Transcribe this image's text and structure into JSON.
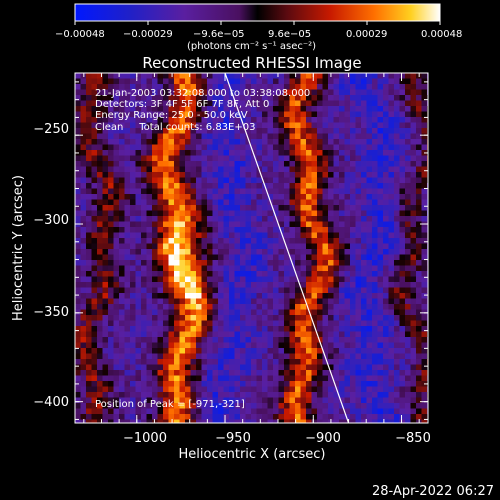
{
  "chart_data": {
    "type": "heatmap",
    "title": "Reconstructed RHESSI Image",
    "xlabel": "Heliocentric X (arcsec)",
    "ylabel": "Heliocentric Y (arcsec)",
    "xlim": [
      -1035,
      -835
    ],
    "ylim": [
      -412,
      -215
    ],
    "x_ticks": [
      -1000,
      -950,
      -900,
      -850
    ],
    "x_tick_labels": [
      "−1000",
      "−950",
      "−900",
      "−850"
    ],
    "y_ticks": [
      -250,
      -300,
      -350,
      -400
    ],
    "y_tick_labels": [
      "−250",
      "−300",
      "−350",
      "−400"
    ],
    "colorbar": {
      "colormap": "blue-purple-red-yellow-white",
      "range": [
        -0.00048,
        0.00048
      ],
      "tick_labels": [
        "−0.00048",
        "−0.00029",
        "−9.6e−05",
        "9.6e−05",
        "0.00029",
        "0.00048"
      ],
      "units": "(photons cm⁻² s⁻¹ asec⁻²)"
    },
    "annotations": [
      "21-Jan-2003 03:32:08.000 to 03:38:08.000",
      "Detectors: 3F 4F 5F 6F 7F 8F, Att 0",
      "Energy Range: 25.0 - 50.0 keV",
      "Clean     Total counts: 6.83E+03"
    ],
    "peak_label": "Position of Peak = [-971,-321]",
    "peak": [
      -971,
      -321
    ],
    "bands": [
      {
        "x": -1022,
        "amp": 0.55,
        "width": 9
      },
      {
        "x": -976,
        "amp": 1.0,
        "width": 11
      },
      {
        "x": -946,
        "amp": -0.45,
        "width": 12
      },
      {
        "x": -902,
        "amp": 0.9,
        "width": 10
      },
      {
        "x": -866,
        "amp": -0.5,
        "width": 12
      },
      {
        "x": -842,
        "amp": 0.45,
        "width": 7
      }
    ],
    "limb_line": {
      "x_start": -950,
      "y_start": -215,
      "x_end": -880,
      "y_end": -412
    },
    "timestamp": "28-Apr-2022 06:27"
  }
}
